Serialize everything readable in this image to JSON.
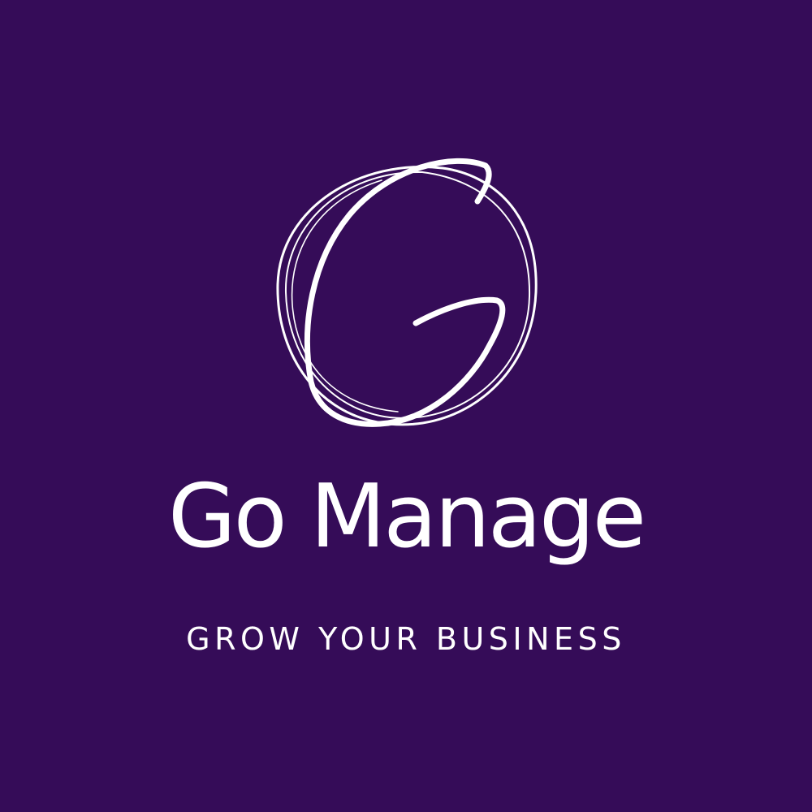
{
  "brand": {
    "name": "Go Manage",
    "tagline": "GROW YOUR BUSINESS"
  },
  "colors": {
    "background": "#350c58",
    "foreground": "#ffffff"
  },
  "icons": {
    "logo": "handwritten-g-in-circle-icon"
  }
}
